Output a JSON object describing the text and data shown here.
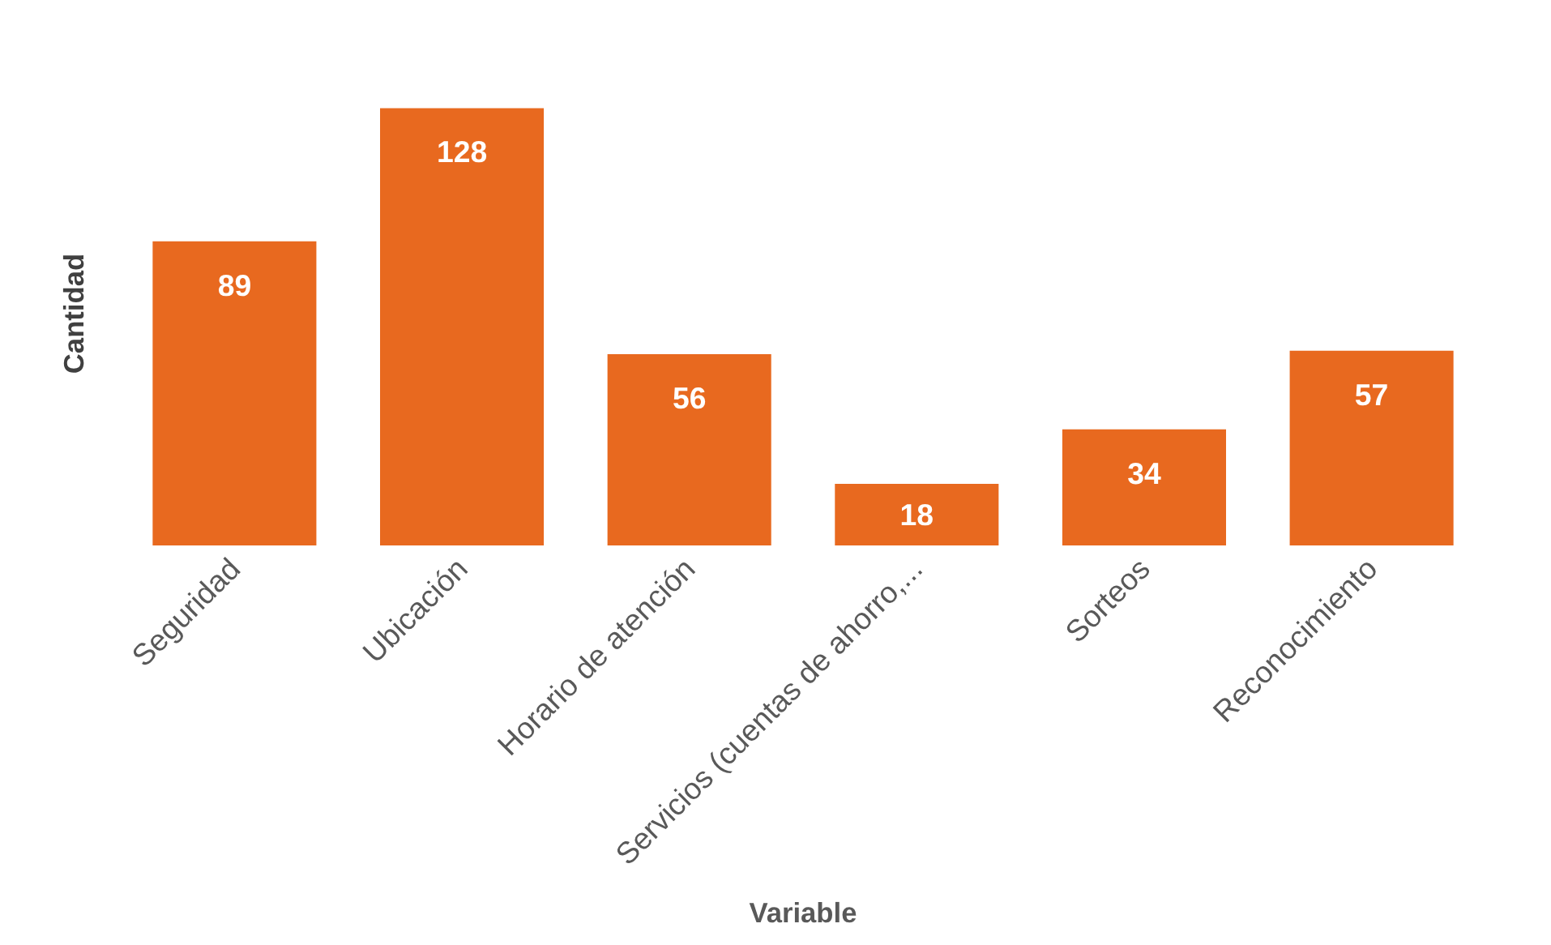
{
  "chart_data": {
    "type": "bar",
    "xlabel": "Variable",
    "ylabel": "Cantidad",
    "categories": [
      "Seguridad",
      "Ubicación",
      "Horario de atención",
      "Servicios (cuentas de ahorro,...",
      "Sorteos",
      "Reconocimiento"
    ],
    "values": [
      89,
      128,
      56,
      18,
      34,
      57
    ],
    "color": "#e8691f",
    "data_labels": true,
    "grid": false
  }
}
